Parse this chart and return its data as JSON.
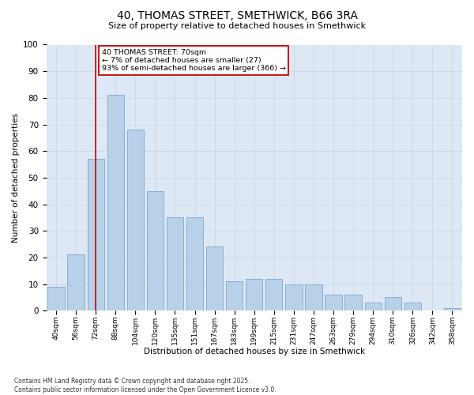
{
  "title_line1": "40, THOMAS STREET, SMETHWICK, B66 3RA",
  "title_line2": "Size of property relative to detached houses in Smethwick",
  "xlabel": "Distribution of detached houses by size in Smethwick",
  "ylabel": "Number of detached properties",
  "categories": [
    "40sqm",
    "56sqm",
    "72sqm",
    "88sqm",
    "104sqm",
    "120sqm",
    "135sqm",
    "151sqm",
    "167sqm",
    "183sqm",
    "199sqm",
    "215sqm",
    "231sqm",
    "247sqm",
    "263sqm",
    "279sqm",
    "294sqm",
    "310sqm",
    "326sqm",
    "342sqm",
    "358sqm"
  ],
  "values": [
    9,
    21,
    57,
    81,
    68,
    45,
    35,
    35,
    24,
    11,
    12,
    12,
    10,
    10,
    6,
    6,
    3,
    5,
    3,
    0,
    1
  ],
  "bar_color": "#b8d0e8",
  "bar_edge_color": "#7aabcd",
  "grid_color": "#c8d8ec",
  "background_color": "#dde8f4",
  "subject_line_x": "72sqm",
  "subject_line_color": "#cc0000",
  "annotation_text": "40 THOMAS STREET: 70sqm\n← 7% of detached houses are smaller (27)\n93% of semi-detached houses are larger (366) →",
  "annotation_box_color": "#cc0000",
  "ylim": [
    0,
    100
  ],
  "yticks": [
    0,
    10,
    20,
    30,
    40,
    50,
    60,
    70,
    80,
    90,
    100
  ],
  "footnote": "Contains HM Land Registry data © Crown copyright and database right 2025.\nContains public sector information licensed under the Open Government Licence v3.0."
}
